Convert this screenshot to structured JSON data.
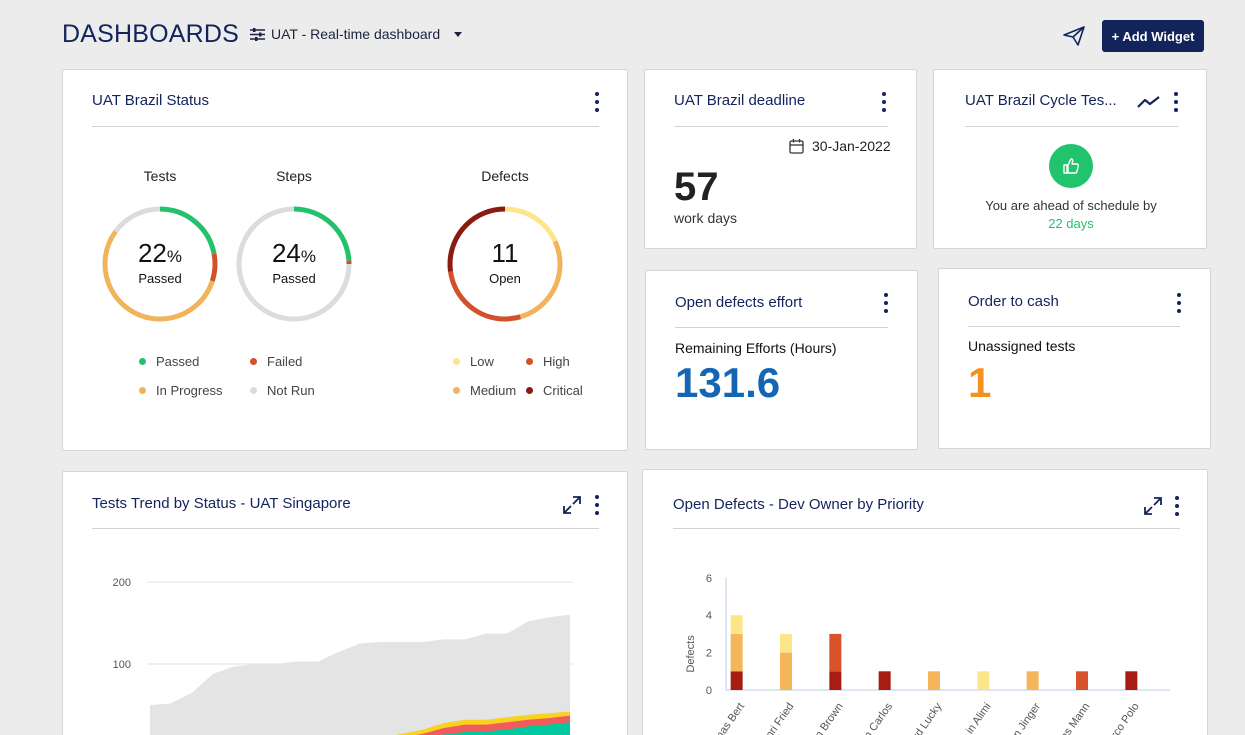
{
  "header": {
    "title": "DASHBOARDS",
    "dashboard_select": "UAT - Real-time dashboard",
    "add_widget": "+ Add Widget"
  },
  "status_card": {
    "title": "UAT Brazil Status",
    "tests": {
      "title": "Tests",
      "value": "22",
      "unit": "%",
      "sub": "Passed",
      "segments": [
        22,
        8,
        55,
        15
      ]
    },
    "steps": {
      "title": "Steps",
      "value": "24",
      "unit": "%",
      "sub": "Passed",
      "segments": [
        24,
        1,
        0,
        75
      ]
    },
    "defects": {
      "title": "Defects",
      "value": "11",
      "sub": "Open",
      "segments": [
        2,
        3,
        3,
        3
      ]
    },
    "legend_tests": [
      "Passed",
      "Failed",
      "In Progress",
      "Not Run"
    ],
    "legend_defects": [
      "Low",
      "High",
      "Medium",
      "Critical"
    ],
    "colors": {
      "passed": "#23c16b",
      "failed": "#d2502c",
      "in_progress": "#f2b45a",
      "not_run": "#dcdcdc",
      "low": "#fde68a",
      "high": "#d2502c",
      "medium": "#f2b45a",
      "critical": "#8b1a12"
    }
  },
  "deadline_card": {
    "title": "UAT Brazil deadline",
    "date": "30-Jan-2022",
    "number": "57",
    "unit": "work days"
  },
  "cycle_card": {
    "title": "UAT Brazil Cycle Tes...",
    "message": "You are ahead of schedule by",
    "days": "22 days"
  },
  "effort_card": {
    "title": "Open defects effort",
    "label": "Remaining Efforts (Hours)",
    "value": "131.6"
  },
  "cash_card": {
    "title": "Order to cash",
    "label": "Unassigned tests",
    "value": "1"
  },
  "trend_card": {
    "title": "Tests Trend by Status - UAT Singapore"
  },
  "defects_card": {
    "title": "Open Defects - Dev Owner by Priority"
  },
  "chart_data": [
    {
      "type": "area",
      "title": "Tests Trend by Status - UAT Singapore",
      "yticks": [
        100,
        200
      ],
      "ylim": [
        0,
        200
      ],
      "x": [
        1,
        2,
        3,
        4,
        5,
        6,
        7,
        8,
        9,
        10,
        11,
        12,
        13,
        14,
        15,
        16,
        17,
        18,
        19,
        20,
        21
      ],
      "series": [
        {
          "color": "#e4e4e4",
          "values": [
            50,
            52,
            65,
            88,
            97,
            100,
            100,
            103,
            103,
            115,
            125,
            127,
            127,
            127,
            130,
            130,
            137,
            137,
            152,
            157,
            160
          ]
        },
        {
          "color": "#f7d21f",
          "values": [
            0,
            0,
            0,
            0,
            0,
            0,
            0,
            0,
            0,
            0,
            0,
            10,
            15,
            20,
            28,
            32,
            32,
            35,
            38,
            40,
            42
          ]
        },
        {
          "color": "#f25b5b",
          "values": [
            0,
            0,
            0,
            0,
            0,
            0,
            0,
            0,
            0,
            0,
            0,
            6,
            10,
            15,
            22,
            26,
            26,
            29,
            32,
            34,
            37
          ]
        },
        {
          "color": "#00c9a0",
          "values": [
            0,
            0,
            0,
            0,
            0,
            0,
            0,
            0,
            0,
            0,
            0,
            3,
            6,
            9,
            14,
            17,
            18,
            20,
            24,
            26,
            29
          ]
        }
      ]
    },
    {
      "type": "bar",
      "title": "Open Defects - Dev Owner by Priority",
      "ylabel": "Defects",
      "ylim": [
        0,
        6
      ],
      "yticks": [
        0,
        2,
        4,
        6
      ],
      "categories": [
        "Thomas Bert",
        "Henri Fried",
        "John Brown",
        "Juan Carlos",
        "Richard Lucky",
        "Yasmin Alimi",
        "Jason Jinger",
        "Hans Mann",
        "Marco Polo"
      ],
      "category_display": [
        "mas Bert",
        "nri Fried",
        "n Brown",
        "n Carlos",
        "rd Lucky",
        "in Alimi",
        "on Jinger",
        "ns Mann",
        "rco Polo"
      ],
      "series": [
        {
          "name": "Critical",
          "color": "#a81d12",
          "values": [
            1,
            0,
            1,
            1,
            0,
            0,
            0,
            0,
            1
          ]
        },
        {
          "name": "High",
          "color": "#d9532a",
          "values": [
            0,
            0,
            2,
            0,
            0,
            0,
            0,
            1,
            0
          ]
        },
        {
          "name": "Medium",
          "color": "#f5b55a",
          "values": [
            2,
            2,
            0,
            0,
            1,
            0,
            1,
            0,
            0
          ]
        },
        {
          "name": "Low",
          "color": "#fde58a",
          "values": [
            1,
            1,
            0,
            0,
            0,
            1,
            0,
            0,
            0
          ]
        }
      ]
    }
  ]
}
